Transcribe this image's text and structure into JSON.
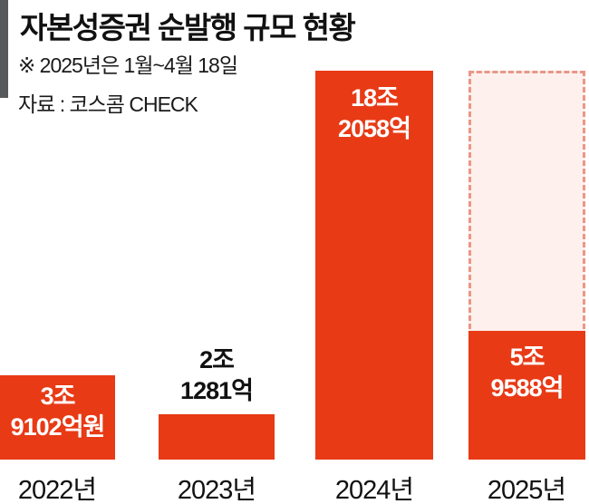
{
  "header": {
    "title": "자본성증권 순발행 규모 현황",
    "note": "※ 2025년은 1월~4월 18일",
    "source": "자료 : 코스콤 CHECK"
  },
  "colors": {
    "bar_red": "#e83a15",
    "projection_fill": "#fdf0ed",
    "projection_dash": "#ec9585",
    "accent_gray": "#58595b",
    "text_black": "#111111",
    "value_text_white": "#ffffff"
  },
  "chart_data": {
    "type": "bar",
    "title": "자본성증권 순발행 규모 현황",
    "note": "※ 2025년은 1월~4월 18일",
    "source": "자료 : 코스콤 CHECK",
    "unit": "억원",
    "categories": [
      "2022년",
      "2023년",
      "2024년",
      "2025년"
    ],
    "values": [
      39102,
      21281,
      182058,
      59588
    ],
    "ylim": [
      0,
      182058
    ],
    "grid": false,
    "legend": false,
    "bars": [
      {
        "year": "2022년",
        "value_lines": [
          "3조",
          "9102억원"
        ],
        "value_eok": 39102,
        "label_position": "inside-top",
        "style": "solid"
      },
      {
        "year": "2023년",
        "value_lines": [
          "2조",
          "1281억"
        ],
        "value_eok": 21281,
        "label_position": "above",
        "style": "solid"
      },
      {
        "year": "2024년",
        "value_lines": [
          "18조",
          "2058억"
        ],
        "value_eok": 182058,
        "label_position": "inside-top",
        "style": "solid"
      },
      {
        "year": "2025년",
        "value_lines": [
          "5조",
          "9588억"
        ],
        "value_eok": 59588,
        "label_position": "inside-top",
        "style": "solid-with-dashed-projection-outline",
        "projection_outline_height_eok": 182058
      }
    ]
  }
}
